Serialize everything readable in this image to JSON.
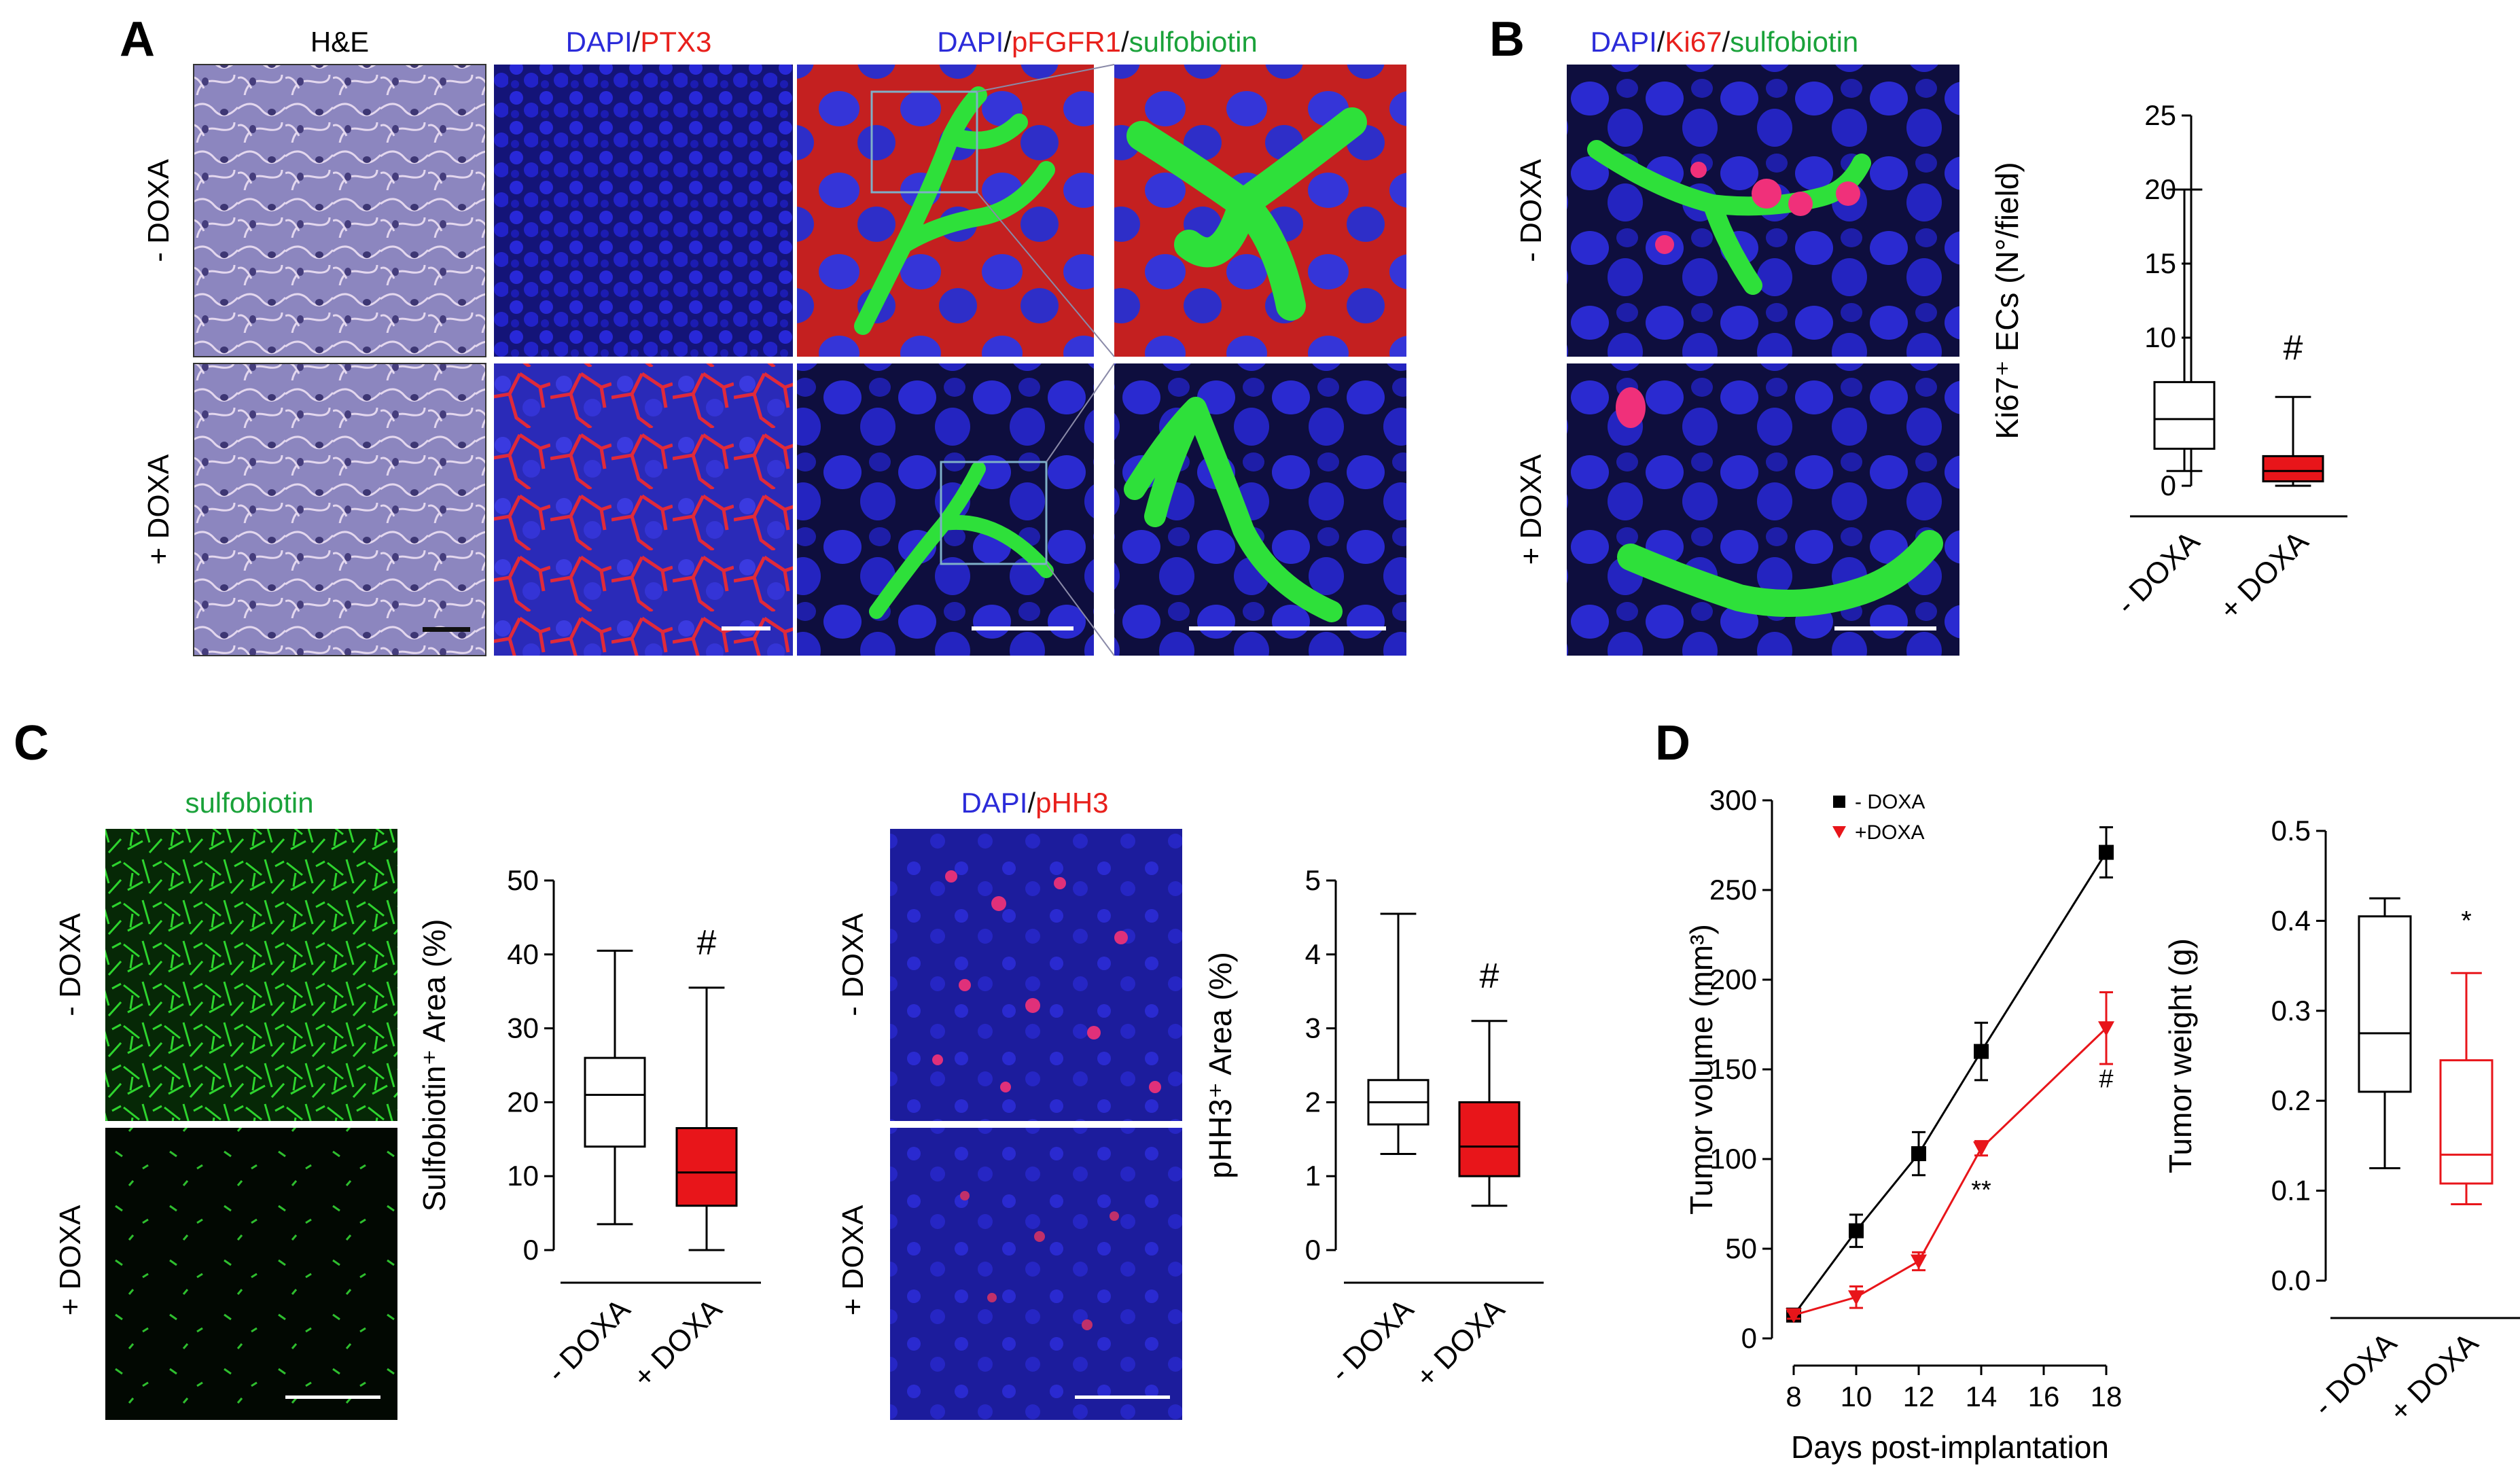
{
  "panels": {
    "A": "A",
    "B": "B",
    "C": "C",
    "D": "D"
  },
  "conditions": {
    "minus": "- DOXA",
    "plus": "+ DOXA"
  },
  "panelA": {
    "he": "H&E",
    "ptx3_title": {
      "dapi": "DAPI",
      "sep": "/",
      "ptx3": "PTX3"
    },
    "pfgfr1_title": {
      "dapi": "DAPI",
      "sep1": "/",
      "pfgfr1": "pFGFR1",
      "sep2": "/",
      "sulfo": "sulfobiotin"
    }
  },
  "panelB": {
    "title": {
      "dapi": "DAPI",
      "sep1": "/",
      "ki67": "Ki67",
      "sep2": "/",
      "sulfo": "sulfobiotin"
    }
  },
  "panelC": {
    "sulfo_title": "sulfobiotin",
    "phh3_title": {
      "dapi": "DAPI",
      "sep": "/",
      "phh3": "pHH3"
    }
  },
  "colors": {
    "dapi": "#2b2bd9",
    "red": "#e8201c",
    "green": "#1aa23a",
    "boxRed": "#e8151a"
  },
  "chart_data": [
    {
      "type": "box",
      "id": "ki67",
      "ylabel": "Ki67⁺ ECs (N°/field)",
      "ylim": [
        0,
        25
      ],
      "yticks": [
        "0",
        "5",
        "10",
        "15",
        "20",
        "25"
      ],
      "categories": [
        "- DOXA",
        "+ DOXA"
      ],
      "boxes": [
        {
          "min": 1,
          "q1": 2.5,
          "median": 4.5,
          "q3": 7,
          "max": 20,
          "fill": "#ffffff"
        },
        {
          "min": 0,
          "q1": 0.3,
          "median": 1,
          "q3": 2,
          "max": 6,
          "fill": "#e8151a"
        }
      ],
      "annotations": [
        {
          "text": "#",
          "category": "+ DOXA",
          "y": 8.5
        }
      ]
    },
    {
      "type": "box",
      "id": "sulfobiotin",
      "ylabel": "Sulfobiotin⁺ Area (%)",
      "ylim": [
        0,
        50
      ],
      "yticks": [
        "0",
        "10",
        "20",
        "30",
        "40",
        "50"
      ],
      "categories": [
        "- DOXA",
        "+ DOXA"
      ],
      "boxes": [
        {
          "min": 3.5,
          "q1": 14,
          "median": 21,
          "q3": 26,
          "max": 40.5,
          "fill": "#ffffff"
        },
        {
          "min": 0,
          "q1": 6,
          "median": 10.5,
          "q3": 16.5,
          "max": 35.5,
          "fill": "#e8151a"
        }
      ],
      "annotations": [
        {
          "text": "#",
          "category": "+ DOXA",
          "y": 40
        }
      ]
    },
    {
      "type": "box",
      "id": "phh3",
      "ylabel": "pHH3⁺ Area (%)",
      "ylim": [
        0,
        5
      ],
      "yticks": [
        "0",
        "1",
        "2",
        "3",
        "4",
        "5"
      ],
      "categories": [
        "- DOXA",
        "+ DOXA"
      ],
      "boxes": [
        {
          "min": 1.3,
          "q1": 1.7,
          "median": 2,
          "q3": 2.3,
          "max": 4.55,
          "fill": "#ffffff"
        },
        {
          "min": 0.6,
          "q1": 1,
          "median": 1.4,
          "q3": 2,
          "max": 3.1,
          "fill": "#e8151a"
        }
      ],
      "annotations": [
        {
          "text": "#",
          "category": "+ DOXA",
          "y": 3.55
        }
      ]
    },
    {
      "type": "line",
      "id": "tumor-volume",
      "xlabel": "Days post-implantation",
      "ylabel": "Tumor volume (mm³)",
      "xlim": [
        8,
        18
      ],
      "ylim": [
        0,
        300
      ],
      "xticks": [
        "8",
        "10",
        "12",
        "14",
        "16",
        "18"
      ],
      "yticks": [
        "0",
        "50",
        "100",
        "150",
        "200",
        "250",
        "300"
      ],
      "legend": "top-left",
      "series": [
        {
          "name": "- DOXA",
          "color": "#000000",
          "marker": "square",
          "x": [
            8,
            10,
            12,
            14,
            18
          ],
          "y": [
            13,
            60,
            103,
            160,
            271
          ],
          "err": [
            2,
            9,
            12,
            16,
            14
          ]
        },
        {
          "name": "+DOXA",
          "color": "#e8151a",
          "marker": "triangle-down",
          "x": [
            8,
            10,
            12,
            14,
            18
          ],
          "y": [
            13,
            23,
            43,
            106,
            173
          ],
          "err": [
            2,
            6,
            5,
            4,
            20
          ]
        }
      ],
      "annotations": [
        {
          "text": "**",
          "x": 14,
          "y": 78
        },
        {
          "text": "#",
          "x": 18,
          "y": 140
        }
      ]
    },
    {
      "type": "box",
      "id": "tumor-weight",
      "ylabel": "Tumor weight (g)",
      "ylim": [
        0,
        0.5
      ],
      "yticks": [
        "0.0",
        "0.1",
        "0.2",
        "0.3",
        "0.4",
        "0.5"
      ],
      "categories": [
        "- DOXA",
        "+ DOXA"
      ],
      "boxes": [
        {
          "min": 0.125,
          "q1": 0.21,
          "median": 0.275,
          "q3": 0.405,
          "max": 0.425,
          "fill": "#ffffff",
          "stroke": "#000000"
        },
        {
          "min": 0.085,
          "q1": 0.108,
          "median": 0.14,
          "q3": 0.245,
          "max": 0.342,
          "fill": "#ffffff",
          "stroke": "#e8151a"
        }
      ],
      "annotations": [
        {
          "text": "*",
          "category": "+ DOXA",
          "y": 0.39
        }
      ]
    }
  ]
}
